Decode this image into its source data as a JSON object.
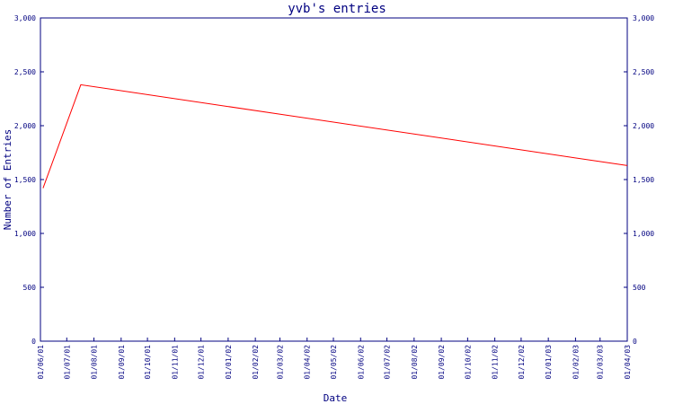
{
  "chart_data": {
    "type": "line",
    "title": "yvb's entries",
    "xlabel": "Date",
    "ylabel": "Number of Entries",
    "x_tick_labels": [
      "01/06/01",
      "01/07/01",
      "01/08/01",
      "01/09/01",
      "01/10/01",
      "01/11/01",
      "01/12/01",
      "01/01/02",
      "01/02/02",
      "01/03/02",
      "01/04/02",
      "01/05/02",
      "01/06/02",
      "01/07/02",
      "01/08/02",
      "01/09/02",
      "01/10/02",
      "01/11/02",
      "01/12/02",
      "01/01/03",
      "01/02/03",
      "01/03/03",
      "01/04/03"
    ],
    "y_ticks": [
      0,
      500,
      1000,
      1500,
      2000,
      2500,
      3000
    ],
    "y_tick_labels": [
      "0",
      "500",
      "1,000",
      "1,500",
      "2,000",
      "2,500",
      "3,000"
    ],
    "ylim": [
      0,
      3000
    ],
    "grid": false,
    "series": [
      {
        "color": "#ff0000",
        "points": [
          {
            "x": "2001-06-04",
            "y": 1420
          },
          {
            "x": "2001-07-17",
            "y": 2380
          },
          {
            "x": "2003-04-01",
            "y": 1630
          }
        ]
      }
    ],
    "colors": {
      "axis": "#000080",
      "line": "#ff0000"
    }
  }
}
